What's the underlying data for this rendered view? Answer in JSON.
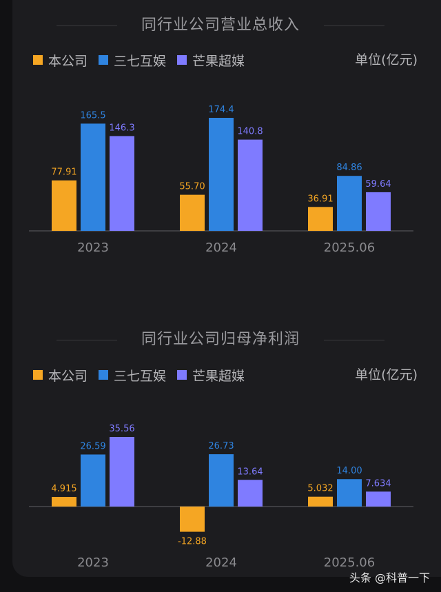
{
  "colors": {
    "company": "#f5a623",
    "sanqi": "#2f84e0",
    "mango": "#7f7bff",
    "axis": "#4a4a4e",
    "tick": "#8a8a8e"
  },
  "chart_data": [
    {
      "type": "bar",
      "title": "同行业公司营业总收入",
      "unit": "单位(亿元)",
      "categories": [
        "2023",
        "2024",
        "2025.06"
      ],
      "series": [
        {
          "name": "本公司",
          "values": [
            77.91,
            55.7,
            36.91
          ],
          "labels": [
            "77.91",
            "55.70",
            "36.91"
          ]
        },
        {
          "name": "三七互娱",
          "values": [
            165.5,
            174.4,
            84.86
          ],
          "labels": [
            "165.5",
            "174.4",
            "84.86"
          ]
        },
        {
          "name": "芒果超媒",
          "values": [
            146.3,
            140.8,
            59.64
          ],
          "labels": [
            "146.3",
            "140.8",
            "59.64"
          ]
        }
      ],
      "ylim": [
        0,
        174.4
      ]
    },
    {
      "type": "bar",
      "title": "同行业公司归母净利润",
      "unit": "单位(亿元)",
      "categories": [
        "2023",
        "2024",
        "2025.06"
      ],
      "series": [
        {
          "name": "本公司",
          "values": [
            4.915,
            -12.88,
            5.032
          ],
          "labels": [
            "4.915",
            "-12.88",
            "5.032"
          ]
        },
        {
          "name": "三七互娱",
          "values": [
            26.59,
            26.73,
            14.0
          ],
          "labels": [
            "26.59",
            "26.73",
            "14.00"
          ]
        },
        {
          "name": "芒果超媒",
          "values": [
            35.56,
            13.64,
            7.634
          ],
          "labels": [
            "35.56",
            "13.64",
            "7.634"
          ]
        }
      ],
      "ylim": [
        -12.88,
        35.56
      ]
    }
  ],
  "footer": "头条 @科普一下"
}
